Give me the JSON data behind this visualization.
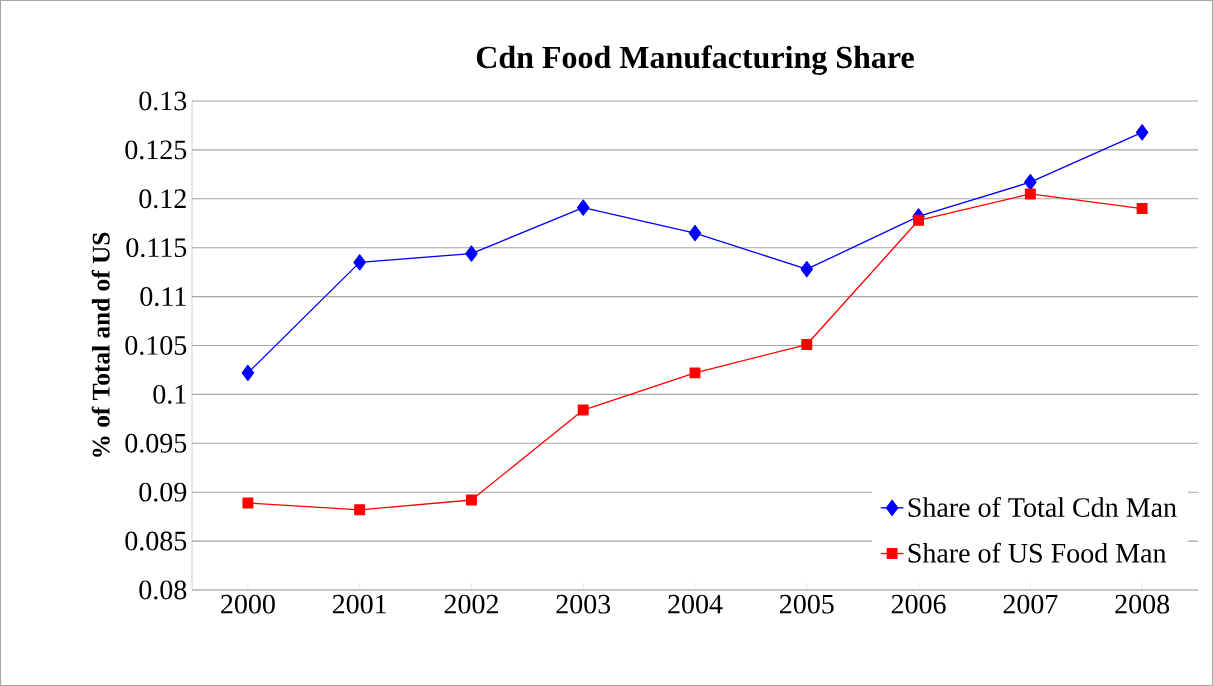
{
  "chart_data": {
    "type": "line",
    "title": "Cdn Food Manufacturing Share",
    "ylabel": "% of Total and of US",
    "categories": [
      "2000",
      "2001",
      "2002",
      "2003",
      "2004",
      "2005",
      "2006",
      "2007",
      "2008"
    ],
    "series": [
      {
        "name": "Share of Total Cdn Man",
        "color": "#0000ff",
        "marker": "diamond",
        "values": [
          0.1022,
          0.1135,
          0.1144,
          0.1191,
          0.1165,
          0.1128,
          0.1182,
          0.1217,
          0.1268
        ]
      },
      {
        "name": "Share of US Food Man",
        "color": "#ff0000",
        "marker": "square",
        "values": [
          0.0889,
          0.0882,
          0.0892,
          0.0984,
          0.1022,
          0.1051,
          0.1178,
          0.1205,
          0.119
        ]
      }
    ],
    "ylim": [
      0.08,
      0.13
    ],
    "yticks": [
      0.08,
      0.085,
      0.09,
      0.095,
      0.1,
      0.105,
      0.11,
      0.115,
      0.12,
      0.125,
      0.13
    ],
    "grid": "y",
    "legend": "bottom right",
    "line_style": "solid"
  }
}
